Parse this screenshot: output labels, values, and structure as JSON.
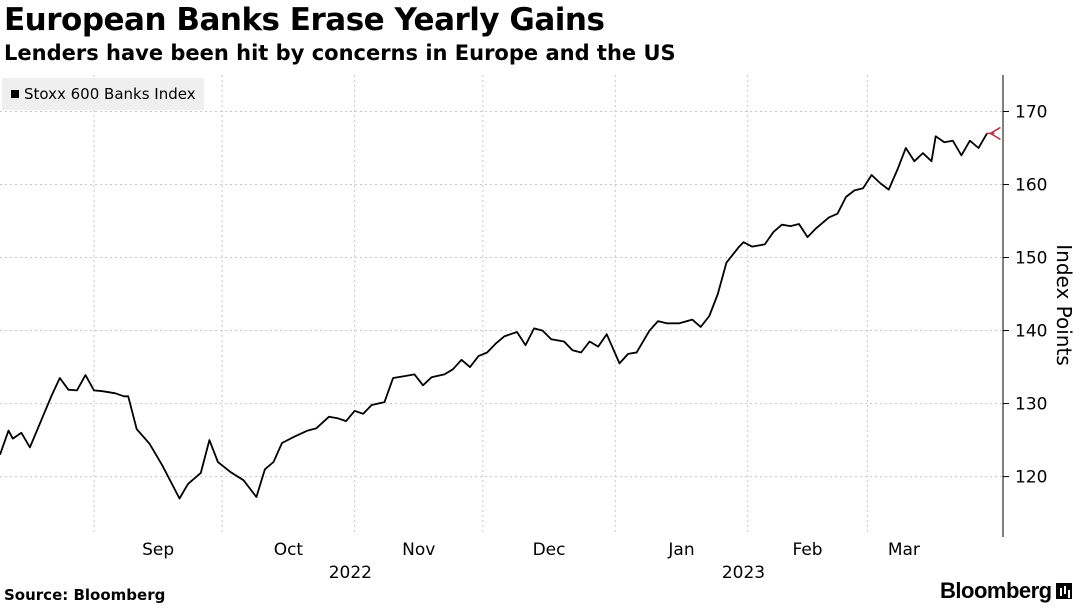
{
  "header": {
    "title": "European Banks Erase Yearly Gains",
    "subtitle": "Lenders have been hit by concerns in Europe and the US"
  },
  "footer": {
    "source": "Source: Bloomberg",
    "brand": "Bloomberg"
  },
  "chart_data": {
    "type": "line",
    "title": "European Banks Erase Yearly Gains",
    "subtitle": "Lenders have been hit by concerns in Europe and the US",
    "ylabel": "Index Points",
    "ylim": [
      112,
      175
    ],
    "yticks": [
      120,
      130,
      140,
      150,
      160,
      170
    ],
    "xlim": [
      "2022-08-10",
      "2023-03-29"
    ],
    "xticks": [
      {
        "date": "2022-09-01",
        "label": "Sep"
      },
      {
        "date": "2022-10-01",
        "label": "Oct"
      },
      {
        "date": "2022-11-01",
        "label": "Nov"
      },
      {
        "date": "2022-12-01",
        "label": "Dec"
      },
      {
        "date": "2023-01-01",
        "label": "Jan"
      },
      {
        "date": "2023-02-01",
        "label": "Feb"
      },
      {
        "date": "2023-03-01",
        "label": "Mar"
      }
    ],
    "year_labels": [
      {
        "date": "2022-10-31",
        "label": "2022"
      },
      {
        "date": "2023-01-31",
        "label": "2023"
      }
    ],
    "grid": true,
    "legend": {
      "placement": "top-left"
    },
    "colors": {
      "line": "#000000",
      "arrow": "#b03a48",
      "grid": "#c8c8c8",
      "legend_bg": "#efefef"
    },
    "series": [
      {
        "name": "Stoxx 600 Banks Index",
        "points": [
          [
            "2022-08-10",
            123.0
          ],
          [
            "2022-08-12",
            126.3
          ],
          [
            "2022-08-13",
            125.2
          ],
          [
            "2022-08-15",
            126.0
          ],
          [
            "2022-08-17",
            124.0
          ],
          [
            "2022-08-19",
            126.8
          ],
          [
            "2022-08-22",
            131.0
          ],
          [
            "2022-08-24",
            133.5
          ],
          [
            "2022-08-26",
            131.9
          ],
          [
            "2022-08-28",
            131.8
          ],
          [
            "2022-08-30",
            133.9
          ],
          [
            "2022-09-01",
            131.8
          ],
          [
            "2022-09-03",
            131.7
          ],
          [
            "2022-09-06",
            131.4
          ],
          [
            "2022-09-08",
            131.0
          ],
          [
            "2022-09-09",
            131.0
          ],
          [
            "2022-09-11",
            126.5
          ],
          [
            "2022-09-14",
            124.5
          ],
          [
            "2022-09-17",
            121.5
          ],
          [
            "2022-09-21",
            117.0
          ],
          [
            "2022-09-23",
            119.0
          ],
          [
            "2022-09-26",
            120.5
          ],
          [
            "2022-09-28",
            125.0
          ],
          [
            "2022-09-30",
            122.0
          ],
          [
            "2022-10-03",
            120.6
          ],
          [
            "2022-10-06",
            119.5
          ],
          [
            "2022-10-09",
            117.2
          ],
          [
            "2022-10-11",
            121.0
          ],
          [
            "2022-10-13",
            122.0
          ],
          [
            "2022-10-15",
            124.6
          ],
          [
            "2022-10-18",
            125.5
          ],
          [
            "2022-10-21",
            126.3
          ],
          [
            "2022-10-23",
            126.6
          ],
          [
            "2022-10-26",
            128.2
          ],
          [
            "2022-10-28",
            128.0
          ],
          [
            "2022-10-30",
            127.6
          ],
          [
            "2022-11-01",
            129.0
          ],
          [
            "2022-11-03",
            128.6
          ],
          [
            "2022-11-05",
            129.8
          ],
          [
            "2022-11-08",
            130.2
          ],
          [
            "2022-11-10",
            133.5
          ],
          [
            "2022-11-12",
            133.7
          ],
          [
            "2022-11-15",
            134.0
          ],
          [
            "2022-11-17",
            132.5
          ],
          [
            "2022-11-19",
            133.6
          ],
          [
            "2022-11-22",
            134.0
          ],
          [
            "2022-11-24",
            134.7
          ],
          [
            "2022-11-26",
            136.0
          ],
          [
            "2022-11-28",
            135.0
          ],
          [
            "2022-11-30",
            136.5
          ],
          [
            "2022-12-02",
            137.0
          ],
          [
            "2022-12-04",
            138.2
          ],
          [
            "2022-12-06",
            139.2
          ],
          [
            "2022-12-09",
            139.8
          ],
          [
            "2022-12-11",
            138.0
          ],
          [
            "2022-12-13",
            140.3
          ],
          [
            "2022-12-15",
            140.0
          ],
          [
            "2022-12-17",
            138.8
          ],
          [
            "2022-12-20",
            138.5
          ],
          [
            "2022-12-22",
            137.3
          ],
          [
            "2022-12-24",
            137.0
          ],
          [
            "2022-12-26",
            138.5
          ],
          [
            "2022-12-28",
            137.8
          ],
          [
            "2022-12-30",
            139.5
          ],
          [
            "2023-01-02",
            135.5
          ],
          [
            "2023-01-04",
            136.8
          ],
          [
            "2023-01-06",
            137.0
          ],
          [
            "2023-01-09",
            140.0
          ],
          [
            "2023-01-11",
            141.3
          ],
          [
            "2023-01-13",
            141.0
          ],
          [
            "2023-01-16",
            141.0
          ],
          [
            "2023-01-19",
            141.5
          ],
          [
            "2023-01-21",
            140.5
          ],
          [
            "2023-01-23",
            142.0
          ],
          [
            "2023-01-25",
            145.0
          ],
          [
            "2023-01-27",
            149.3
          ],
          [
            "2023-01-30",
            151.5
          ],
          [
            "2023-01-31",
            152.1
          ],
          [
            "2023-02-02",
            151.5
          ],
          [
            "2023-02-05",
            151.8
          ],
          [
            "2023-02-07",
            153.5
          ],
          [
            "2023-02-09",
            154.5
          ],
          [
            "2023-02-11",
            154.3
          ],
          [
            "2023-02-13",
            154.6
          ],
          [
            "2023-02-15",
            152.8
          ],
          [
            "2023-02-17",
            154.0
          ],
          [
            "2023-02-20",
            155.5
          ],
          [
            "2023-02-22",
            156.0
          ],
          [
            "2023-02-24",
            158.3
          ],
          [
            "2023-02-26",
            159.2
          ],
          [
            "2023-02-28",
            159.5
          ],
          [
            "2023-03-02",
            161.3
          ],
          [
            "2023-03-04",
            160.2
          ],
          [
            "2023-03-06",
            159.3
          ],
          [
            "2023-03-08",
            162.0
          ],
          [
            "2023-03-10",
            165.0
          ],
          [
            "2023-03-12",
            163.2
          ],
          [
            "2023-03-14",
            164.3
          ],
          [
            "2023-03-16",
            163.2
          ],
          [
            "2023-03-17",
            166.6
          ],
          [
            "2023-03-19",
            165.8
          ],
          [
            "2023-03-21",
            166.0
          ],
          [
            "2023-03-23",
            164.0
          ],
          [
            "2023-03-25",
            166.0
          ],
          [
            "2023-03-27",
            165.0
          ],
          [
            "2023-03-29",
            167.0
          ]
        ]
      }
    ]
  }
}
